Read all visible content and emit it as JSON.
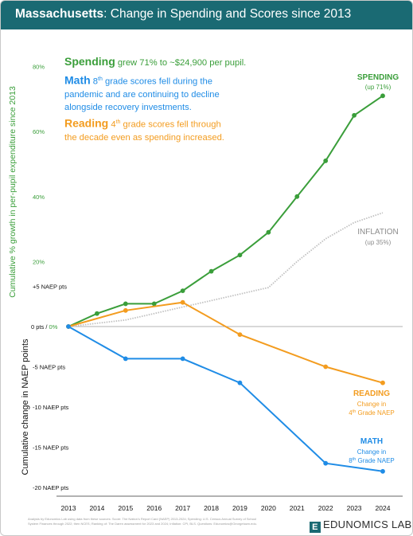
{
  "header": {
    "title_bold": "Massachusetts",
    "title_rest": ": Change in Spending and Scores since 2013"
  },
  "annotations": {
    "spending": {
      "head": "Spending",
      "body": " grew 71% to ~$24,900 per pupil."
    },
    "math": {
      "head": "Math",
      "grade": "8",
      "sup": "th",
      "body": " grade scores fell during the pandemic and are continuing to decline alongside recovery investments."
    },
    "reading": {
      "head": "Reading",
      "grade": "4",
      "sup": "th",
      "body": " grade scores fell through the decade even as spending increased."
    }
  },
  "footer": {
    "note": "Analysis by Edunomics Lab using data from these sources: Score: The Nation's Report Card (NAEP) 2013-2024; Spending: U.S. Census Annual Survey of School System Finances through 2022; then NCES; Ranking of: The Daren assessment for 2023 and 2024; Inflation: CPI, BLS. Questions: Edunomics@Georgetown.edu.",
    "brand_letter": "E",
    "brand_name": "EDUNOMICS LAB"
  },
  "colors": {
    "spending": "#3a9e3a",
    "math": "#1f8ce6",
    "reading": "#f39c1f",
    "inflation": "#c0c0c0",
    "header": "#1a6a73"
  },
  "chart_data": {
    "type": "line",
    "title": "Massachusetts: Change in Spending and Scores since 2013",
    "x": [
      2013,
      2014,
      2015,
      2016,
      2017,
      2018,
      2019,
      2020,
      2021,
      2022,
      2023,
      2024
    ],
    "y_axes": {
      "left_top": {
        "label": "Cumulative % growth in per-pupil expenditure since 2013",
        "ticks": [
          "80%",
          "60%",
          "40%",
          "20%"
        ],
        "range": [
          0,
          80
        ]
      },
      "left_bottom": {
        "label": "Cumulative change in NAEP points",
        "ticks": [
          "+5 NAEP pts",
          "0 pts / 0%",
          "-5 NAEP pts",
          "-10 NAEP pts",
          "-15 NAEP pts",
          "-20 NAEP pts"
        ],
        "range": [
          -20,
          5
        ]
      }
    },
    "series": [
      {
        "name": "SPENDING",
        "sub": "(up 71%)",
        "unit": "%",
        "style": "solid-markers",
        "x": [
          2013,
          2014,
          2015,
          2016,
          2017,
          2018,
          2019,
          2020,
          2021,
          2022,
          2023,
          2024
        ],
        "values": [
          0,
          4,
          7,
          7,
          11,
          17,
          22,
          29,
          40,
          51,
          65,
          71
        ]
      },
      {
        "name": "INFLATION",
        "sub": "(up 35%)",
        "unit": "%",
        "style": "dotted",
        "x": [
          2013,
          2014,
          2015,
          2016,
          2017,
          2018,
          2019,
          2020,
          2021,
          2022,
          2023,
          2024
        ],
        "values": [
          0,
          1,
          2,
          4,
          6,
          8,
          10,
          12,
          20,
          27,
          32,
          35
        ]
      },
      {
        "name": "READING",
        "sub1": "Change in",
        "grade": "4",
        "sup": "th",
        "sub2": " Grade NAEP",
        "unit": "pts",
        "style": "solid-markers",
        "x": [
          2013,
          2015,
          2017,
          2019,
          2022,
          2024
        ],
        "values": [
          0,
          2,
          3,
          -1,
          -5,
          -7
        ]
      },
      {
        "name": "MATH",
        "sub1": "Change in",
        "grade": "8",
        "sup": "th",
        "sub2": " Grade NAEP",
        "unit": "pts",
        "style": "solid-markers",
        "x": [
          2013,
          2015,
          2017,
          2019,
          2022,
          2024
        ],
        "values": [
          0,
          -4,
          -4,
          -7,
          -17,
          -18
        ]
      }
    ]
  }
}
